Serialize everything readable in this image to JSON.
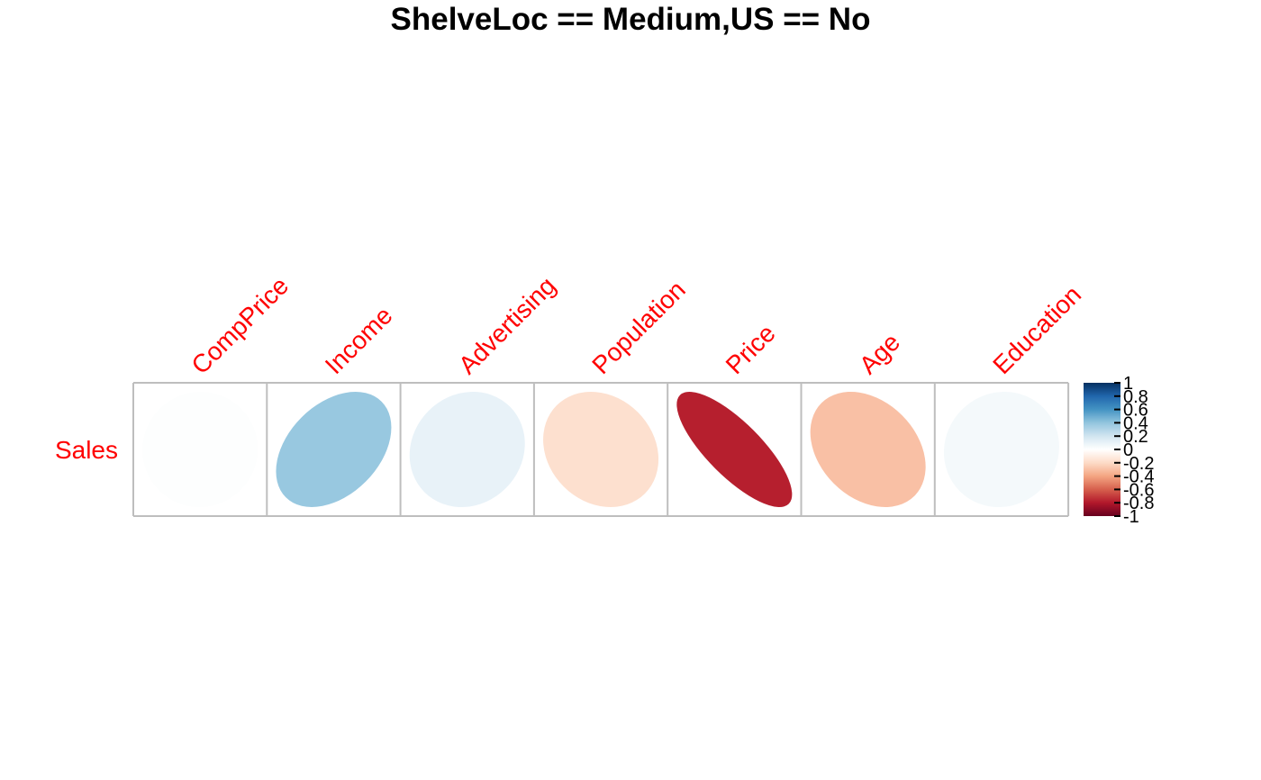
{
  "chart_data": {
    "type": "heatmap",
    "title": "ShelveLoc == Medium,US == No",
    "row_labels": [
      "Sales"
    ],
    "col_labels": [
      "CompPrice",
      "Income",
      "Advertising",
      "Population",
      "Price",
      "Age",
      "Education"
    ],
    "values": [
      [
        0.01,
        0.38,
        0.1,
        -0.17,
        -0.78,
        -0.3,
        0.05
      ]
    ],
    "colorbar": {
      "min": -1,
      "max": 1,
      "tick_labels": [
        "-1",
        "-0.8",
        "-0.6",
        "-0.4",
        "-0.2",
        "0",
        "0.2",
        "0.4",
        "0.6",
        "0.8",
        "1"
      ]
    },
    "method": "ellipse",
    "label_color": "#ff0000",
    "grid_color": "#bebebe"
  }
}
